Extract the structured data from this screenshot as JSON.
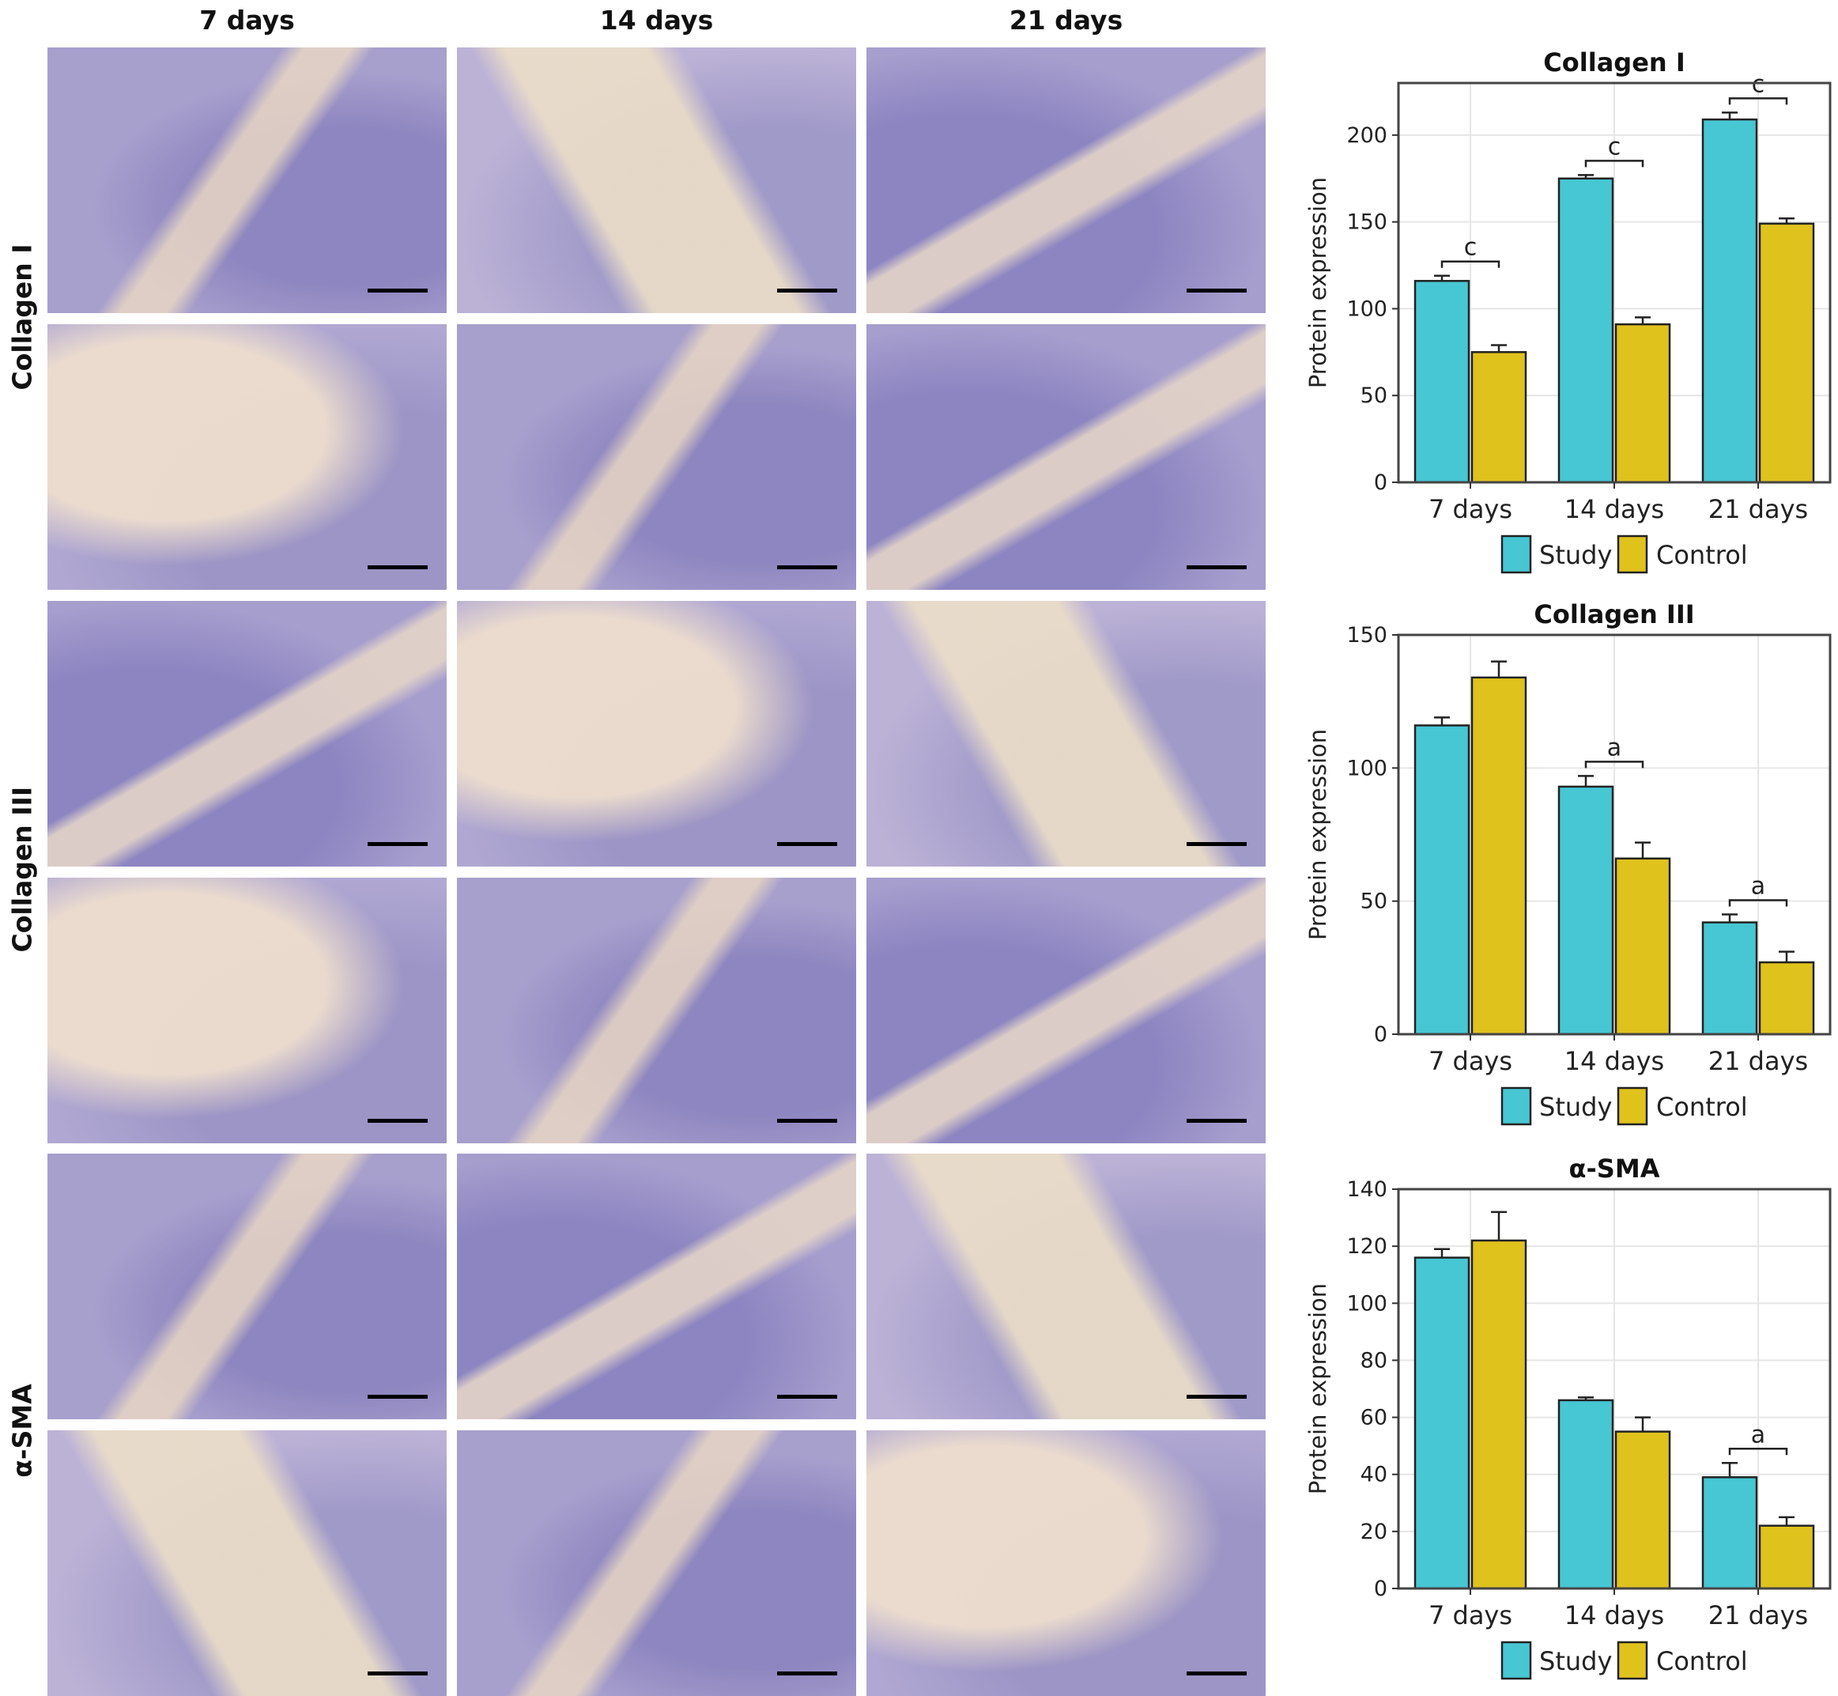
{
  "column_headers": [
    "7 days",
    "14 days",
    "21 days"
  ],
  "row_labels": [
    "Collagen I",
    "Collagen III",
    "α-SMA"
  ],
  "legend": {
    "study": "Study",
    "control": "Control"
  },
  "colors": {
    "study": "#47c6d3",
    "control": "#e0c21d",
    "plot_border": "#444444",
    "grid": "#e6e6e6"
  },
  "chart_data": [
    {
      "type": "bar",
      "title": "Collagen I",
      "ylabel": "Protein expression",
      "categories": [
        "7 days",
        "14 days",
        "21 days"
      ],
      "ylim": [
        0,
        230
      ],
      "yticks": [
        0,
        50,
        100,
        150,
        200
      ],
      "series": [
        {
          "name": "Study",
          "values": [
            116,
            175,
            209
          ],
          "errors": [
            3,
            2,
            4
          ]
        },
        {
          "name": "Control",
          "values": [
            75,
            91,
            149
          ],
          "errors": [
            4,
            4,
            3
          ]
        }
      ],
      "annotations": [
        "c",
        "c",
        "c"
      ]
    },
    {
      "type": "bar",
      "title": "Collagen III",
      "ylabel": "Protein expression",
      "categories": [
        "7 days",
        "14 days",
        "21 days"
      ],
      "ylim": [
        0,
        150
      ],
      "yticks": [
        0,
        50,
        100,
        150
      ],
      "series": [
        {
          "name": "Study",
          "values": [
            116,
            93,
            42
          ],
          "errors": [
            3,
            4,
            3
          ]
        },
        {
          "name": "Control",
          "values": [
            134,
            66,
            27
          ],
          "errors": [
            6,
            6,
            4
          ]
        }
      ],
      "annotations": [
        "",
        "a",
        "a"
      ]
    },
    {
      "type": "bar",
      "title": "α-SMA",
      "ylabel": "Protein expression",
      "categories": [
        "7 days",
        "14 days",
        "21 days"
      ],
      "ylim": [
        0,
        140
      ],
      "yticks": [
        0,
        20,
        40,
        60,
        80,
        100,
        120,
        140
      ],
      "series": [
        {
          "name": "Study",
          "values": [
            116,
            66,
            39
          ],
          "errors": [
            3,
            1,
            5
          ]
        },
        {
          "name": "Control",
          "values": [
            122,
            55,
            22
          ],
          "errors": [
            10,
            5,
            3
          ]
        }
      ],
      "annotations": [
        "",
        "",
        "a"
      ]
    }
  ]
}
